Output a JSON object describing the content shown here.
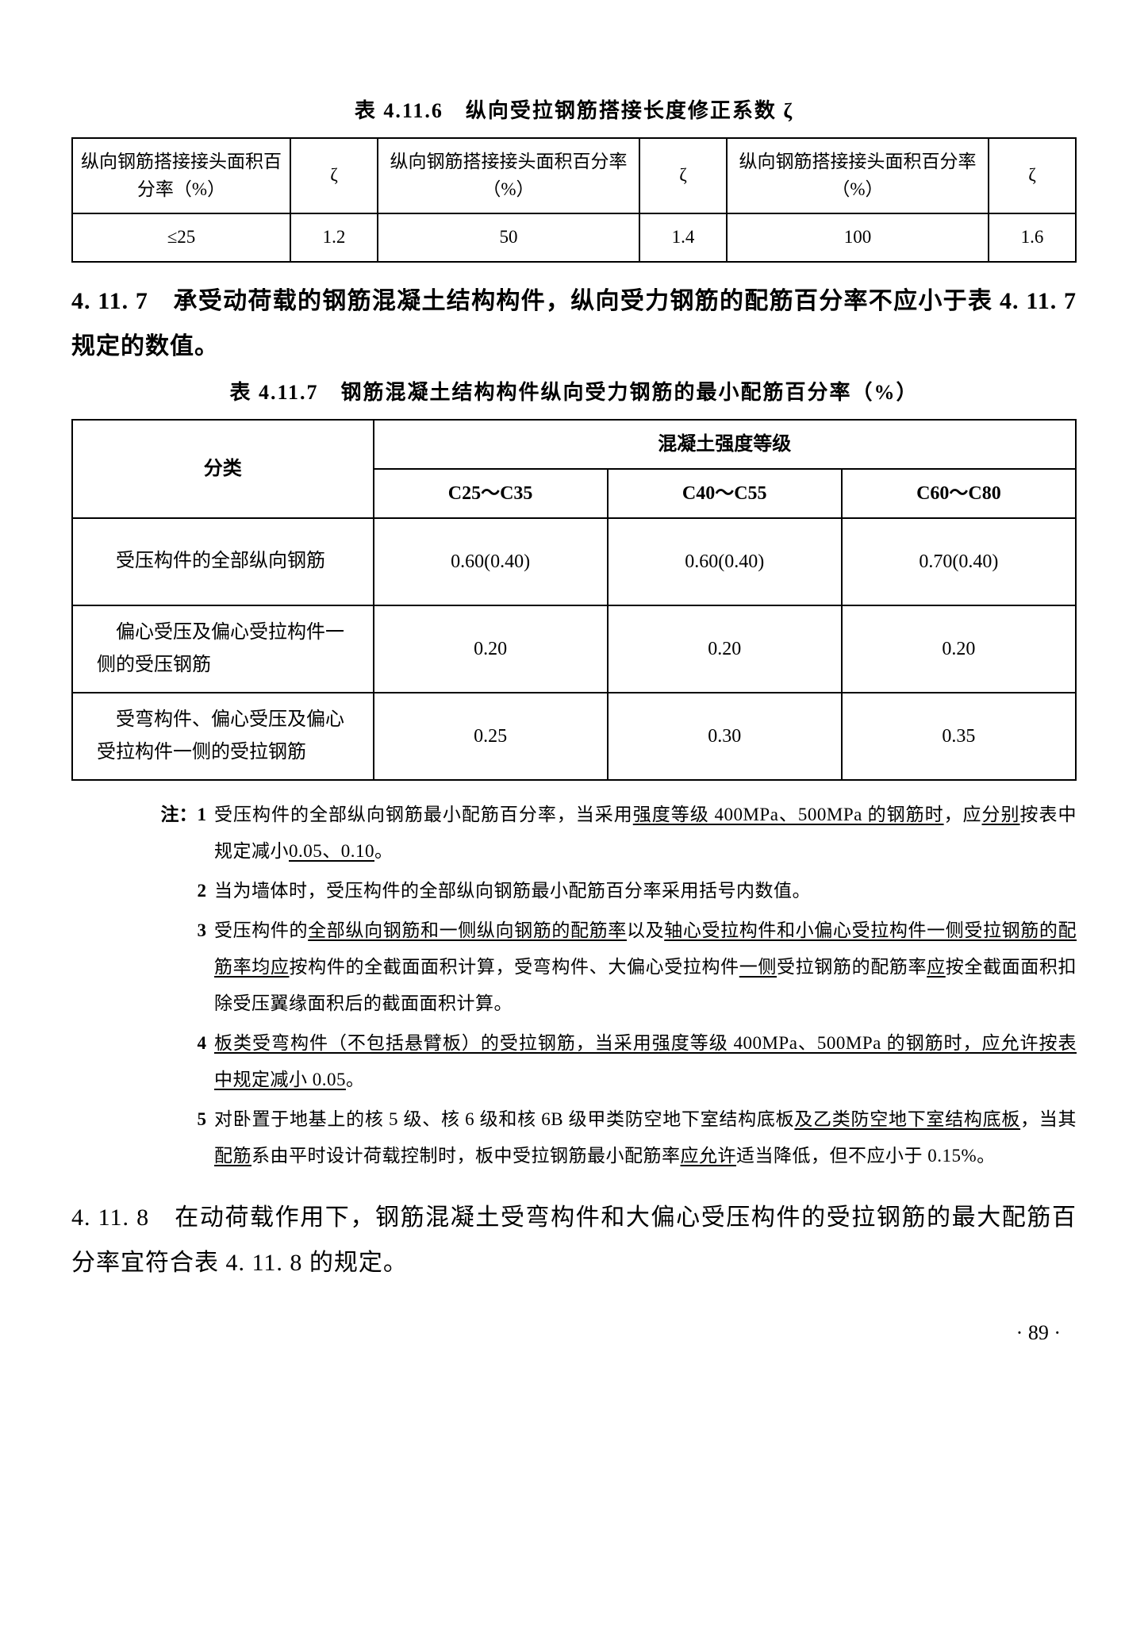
{
  "table6": {
    "caption": "表 4.11.6　纵向受拉钢筋搭接长度修正系数 ζ",
    "header_label": "纵向钢筋搭接接头面积百分率（%）",
    "zeta": "ζ",
    "cells": [
      "≤25",
      "1.2",
      "50",
      "1.4",
      "100",
      "1.6"
    ]
  },
  "heading_4117": "4. 11. 7　承受动荷载的钢筋混凝土结构构件，纵向受力钢筋的配筋百分率不应小于表 4. 11. 7 规定的数值。",
  "table7": {
    "caption": "表 4.11.7　钢筋混凝土结构构件纵向受力钢筋的最小配筋百分率（%）",
    "col_category": "分类",
    "col_group": "混凝土强度等级",
    "cols": [
      "C25～C35",
      "C40～C55",
      "C60～C80"
    ],
    "rows": [
      {
        "label": "　受压构件的全部纵向钢筋",
        "vals": [
          "0.60(0.40)",
          "0.60(0.40)",
          "0.70(0.40)"
        ]
      },
      {
        "label": "　偏心受压及偏心受拉构件一侧的受压钢筋",
        "vals": [
          "0.20",
          "0.20",
          "0.20"
        ]
      },
      {
        "label": "　受弯构件、偏心受压及偏心受拉构件一侧的受拉钢筋",
        "vals": [
          "0.25",
          "0.30",
          "0.35"
        ]
      }
    ]
  },
  "notes": {
    "label": "注：1",
    "items": [
      "受压构件的全部纵向钢筋最小配筋百分率，当采用<u>强度等级 400MPa、500MPa 的钢筋时</u>，应<u>分别</u>按表中规定减小<u>0.05、0.10</u>。",
      "当为墙体时，受压构件的全部纵向钢筋最小配筋百分率采用括号内数值。",
      "受压构件的<u>全部纵向钢筋和一侧纵向钢筋的配筋率</u>以及<u>轴心受拉构件和小偏心受拉构件一侧受拉钢筋的配筋率均应</u>按构件的全截面面积计算，受弯构件、大偏心受拉构件<u>一侧</u>受拉钢筋的配筋率<u>应</u>按全截面面积扣除受压翼缘面积后的截面面积计算。",
      "<u>板类受弯构件（不包括悬臂板）的受拉钢筋，当采用强度等级 400MPa、500MPa 的钢筋时，应允许按表中规定减小 0.05</u>。",
      "对卧置于地基上的核 5 级、核 6 级和核 6B 级甲类防空地下室结构底板<u>及乙类防空地下室结构底板</u>，当其<u>配筋</u>系由平时设计荷载控制时，板中受拉钢筋最小配筋率<u>应允许</u>适当降低，但不应小于 0.15%。"
    ]
  },
  "para_4118": "4. 11. 8　在动荷载作用下，钢筋混凝土受弯构件和大偏心受压构件的受拉钢筋的最大配筋百分率宜符合表 4. 11. 8 的规定。",
  "page_number": "· 89 ·"
}
